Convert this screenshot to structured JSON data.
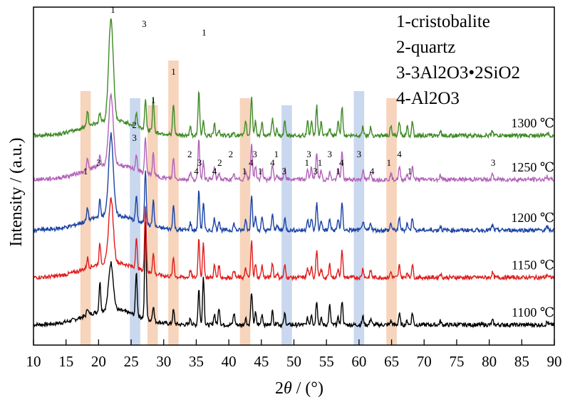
{
  "chart_data": {
    "type": "line",
    "xlabel_prefix": "2",
    "xlabel_symbol": "θ",
    "xlabel_suffix": " / (°)",
    "ylabel": "Intensity / (a.u.)",
    "xlim": [
      10,
      90
    ],
    "xticks": [
      10,
      15,
      20,
      25,
      30,
      35,
      40,
      45,
      50,
      55,
      60,
      65,
      70,
      75,
      80,
      85,
      90
    ],
    "legend": {
      "placement": "top-right",
      "entries": [
        {
          "num": "1",
          "text": "-cristobalite"
        },
        {
          "num": "2",
          "text": "-quartz"
        },
        {
          "num": "3",
          "text": "-3Al2O3•2SiO2"
        },
        {
          "num": "4",
          "text": "-Al2O3"
        }
      ]
    },
    "bands": [
      {
        "x": 18.0,
        "phase": "cristobalite",
        "color": "#f7d4bc"
      },
      {
        "x": 25.6,
        "phase": "quartz",
        "color": "#c9d8ef"
      },
      {
        "x": 28.3,
        "phase": "cristobalite",
        "color": "#f7d4bc"
      },
      {
        "x": 31.5,
        "phase": "cristobalite",
        "color": "#f7d4bc"
      },
      {
        "x": 42.5,
        "phase": "cristobalite",
        "color": "#f7d4bc"
      },
      {
        "x": 48.9,
        "phase": "quartz",
        "color": "#c9d8ef"
      },
      {
        "x": 60.0,
        "phase": "quartz",
        "color": "#c9d8ef"
      },
      {
        "x": 65.0,
        "phase": "cristobalite",
        "color": "#f7d4bc"
      }
    ],
    "peaks": [
      {
        "x": 18.3,
        "rel": 0.22
      },
      {
        "x": 20.2,
        "rel": 0.3
      },
      {
        "x": 21.9,
        "rel": 1.4
      },
      {
        "x": 25.8,
        "rel": 0.45
      },
      {
        "x": 27.2,
        "rel": 1.0
      },
      {
        "x": 28.4,
        "rel": 0.45
      },
      {
        "x": 31.5,
        "rel": 0.42
      },
      {
        "x": 34.1,
        "rel": 0.12
      },
      {
        "x": 35.4,
        "rel": 0.65
      },
      {
        "x": 36.1,
        "rel": 0.5
      },
      {
        "x": 37.8,
        "rel": 0.2
      },
      {
        "x": 38.5,
        "rel": 0.18
      },
      {
        "x": 40.8,
        "rel": 0.12
      },
      {
        "x": 42.6,
        "rel": 0.2
      },
      {
        "x": 43.5,
        "rel": 0.6
      },
      {
        "x": 44.1,
        "rel": 0.22
      },
      {
        "x": 45.1,
        "rel": 0.2
      },
      {
        "x": 46.7,
        "rel": 0.25
      },
      {
        "x": 47.4,
        "rel": 0.1
      },
      {
        "x": 48.6,
        "rel": 0.2
      },
      {
        "x": 52.1,
        "rel": 0.2
      },
      {
        "x": 52.7,
        "rel": 0.2
      },
      {
        "x": 53.5,
        "rel": 0.45
      },
      {
        "x": 54.2,
        "rel": 0.18
      },
      {
        "x": 55.5,
        "rel": 0.2
      },
      {
        "x": 56.8,
        "rel": 0.2
      },
      {
        "x": 57.4,
        "rel": 0.45
      },
      {
        "x": 60.6,
        "rel": 0.15
      },
      {
        "x": 61.8,
        "rel": 0.12
      },
      {
        "x": 64.9,
        "rel": 0.12
      },
      {
        "x": 66.2,
        "rel": 0.2
      },
      {
        "x": 67.4,
        "rel": 0.12
      },
      {
        "x": 68.2,
        "rel": 0.22
      },
      {
        "x": 72.5,
        "rel": 0.07
      },
      {
        "x": 80.5,
        "rel": 0.08
      },
      {
        "x": 88.9,
        "rel": 0.05
      }
    ],
    "series": [
      {
        "name": "1100 ℃",
        "color": "#000000",
        "baseline": 0.06,
        "quartz_scale": 1.6,
        "cristo_scale": 0.55,
        "mullite_scale": 0.9
      },
      {
        "name": "1150 ℃",
        "color": "#e11d1d",
        "baseline": 0.2,
        "quartz_scale": 1.1,
        "cristo_scale": 0.75,
        "mullite_scale": 1.0
      },
      {
        "name": "1200 ℃",
        "color": "#1b43a5",
        "baseline": 0.34,
        "quartz_scale": 0.9,
        "cristo_scale": 0.95,
        "mullite_scale": 1.0
      },
      {
        "name": "1250 ℃",
        "color": "#b263b8",
        "baseline": 0.49,
        "quartz_scale": 0.6,
        "cristo_scale": 0.8,
        "mullite_scale": 1.0
      },
      {
        "name": "1300 ℃",
        "color": "#3f8a26",
        "baseline": 0.62,
        "quartz_scale": 0.5,
        "cristo_scale": 1.2,
        "mullite_scale": 1.1
      }
    ],
    "peak_labels": [
      {
        "x": 18.0,
        "text": "1"
      },
      {
        "x": 20.0,
        "text": "3"
      },
      {
        "x": 22.2,
        "text": "1"
      },
      {
        "x": 25.5,
        "text": "3"
      },
      {
        "x": 25.5,
        "text": "2"
      },
      {
        "x": 27.0,
        "text": "3"
      },
      {
        "x": 28.4,
        "text": "1"
      },
      {
        "x": 31.5,
        "text": "1"
      },
      {
        "x": 34.0,
        "text": "2"
      },
      {
        "x": 35.0,
        "text": "4"
      },
      {
        "x": 35.5,
        "text": "3"
      },
      {
        "x": 36.2,
        "text": "1"
      },
      {
        "x": 37.8,
        "text": "4"
      },
      {
        "x": 38.6,
        "text": "2"
      },
      {
        "x": 40.3,
        "text": "2"
      },
      {
        "x": 42.4,
        "text": "1"
      },
      {
        "x": 43.4,
        "text": "4"
      },
      {
        "x": 44.0,
        "text": "3"
      },
      {
        "x": 44.8,
        "text": "1"
      },
      {
        "x": 46.7,
        "text": "4"
      },
      {
        "x": 47.3,
        "text": "1"
      },
      {
        "x": 48.5,
        "text": "3"
      },
      {
        "x": 52.0,
        "text": "1"
      },
      {
        "x": 52.3,
        "text": "3"
      },
      {
        "x": 53.3,
        "text": "3"
      },
      {
        "x": 54.0,
        "text": "1"
      },
      {
        "x": 55.5,
        "text": "3"
      },
      {
        "x": 56.8,
        "text": "1"
      },
      {
        "x": 57.3,
        "text": "4"
      },
      {
        "x": 60.0,
        "text": "3"
      },
      {
        "x": 62.0,
        "text": "4"
      },
      {
        "x": 64.6,
        "text": "1"
      },
      {
        "x": 66.2,
        "text": "4"
      },
      {
        "x": 67.8,
        "text": "1"
      },
      {
        "x": 80.6,
        "text": "3"
      }
    ]
  }
}
